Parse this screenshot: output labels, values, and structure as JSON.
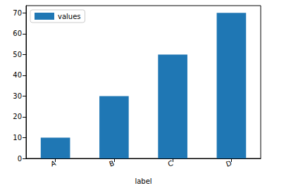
{
  "chart_data": {
    "type": "bar",
    "x_label": "label",
    "categories": [
      "A",
      "B",
      "C",
      "D"
    ],
    "series": [
      {
        "name": "values",
        "color": "#1f77b4",
        "values": [
          10,
          30,
          50,
          70
        ]
      }
    ],
    "ylim": [
      0,
      73.5
    ],
    "yticks": [
      0,
      10,
      20,
      30,
      40,
      50,
      60,
      70
    ],
    "grid": false,
    "legend": "upper left"
  }
}
